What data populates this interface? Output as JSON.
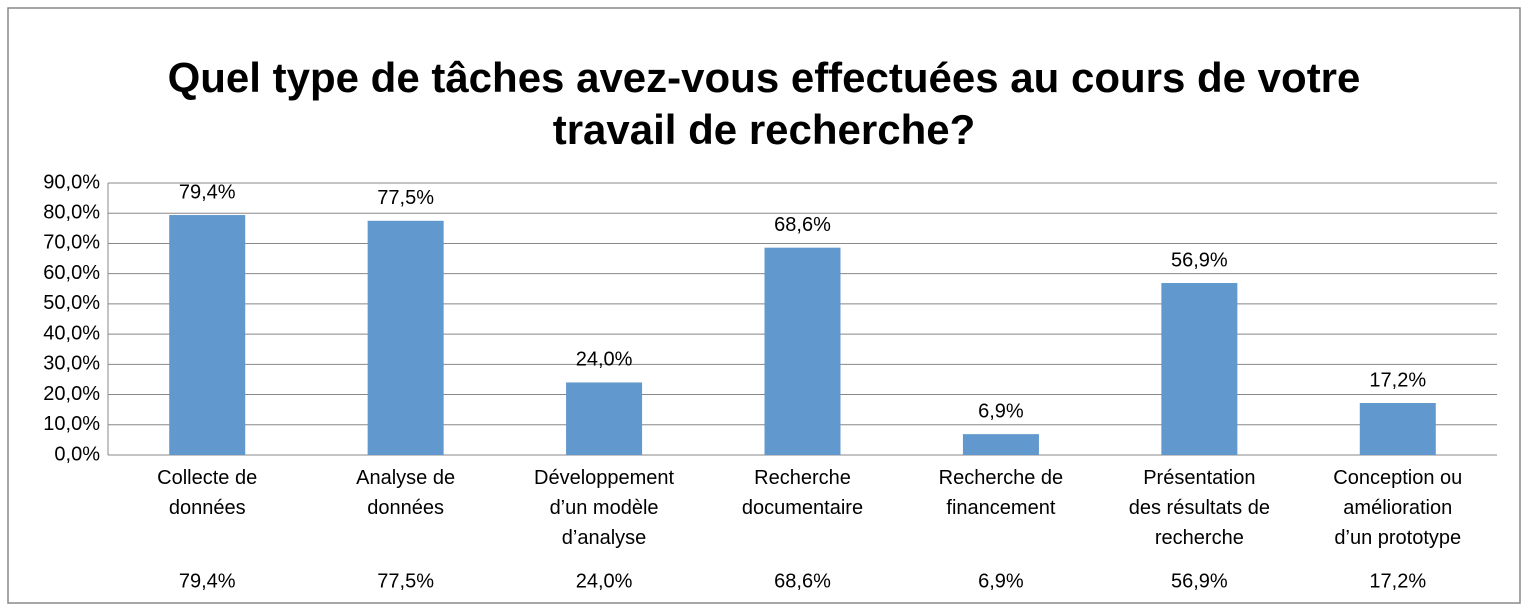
{
  "chart_data": {
    "type": "bar",
    "title": "Quel type de tâches avez-vous effectuées au cours de votre\ntravail de recherche?",
    "categories": [
      "Collecte de\ndonnées",
      "Analyse de\ndonnées",
      "Développement\nd’un modèle\nd’analyse",
      "Recherche\ndocumentaire",
      "Recherche de\nfinancement",
      "Présentation\ndes résultats de\nrecherche",
      "Conception ou\namélioration\nd’un prototype"
    ],
    "values": [
      79.4,
      77.5,
      24.0,
      68.6,
      6.9,
      56.9,
      17.2
    ],
    "value_labels": [
      "79,4%",
      "77,5%",
      "24,0%",
      "68,6%",
      "6,9%",
      "56,9%",
      "17,2%"
    ],
    "color": "#6198cd",
    "ylim": [
      0,
      90
    ],
    "yticks": [
      {
        "value": 0,
        "label": "0,0%"
      },
      {
        "value": 10,
        "label": "10,0%"
      },
      {
        "value": 20,
        "label": "20,0%"
      },
      {
        "value": 30,
        "label": "30,0%"
      },
      {
        "value": 40,
        "label": "40,0%"
      },
      {
        "value": 50,
        "label": "50,0%"
      },
      {
        "value": 60,
        "label": "60,0%"
      },
      {
        "value": 70,
        "label": "70,0%"
      },
      {
        "value": 80,
        "label": "80,0%"
      },
      {
        "value": 90,
        "label": "90,0%"
      }
    ],
    "grid": true
  }
}
